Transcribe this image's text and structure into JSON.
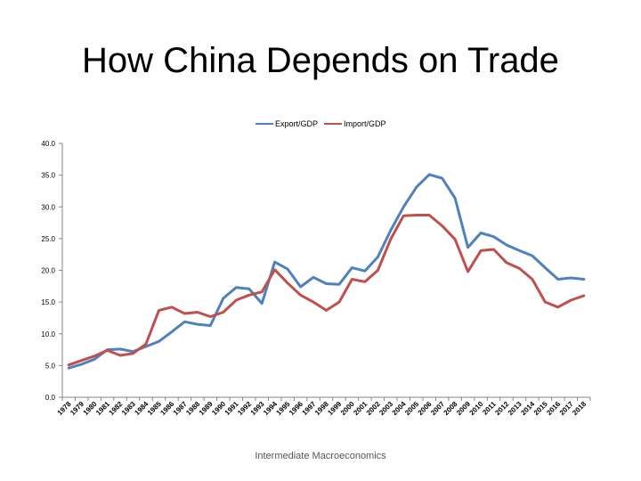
{
  "slide": {
    "title": "How China Depends on Trade",
    "footer": "Intermediate Macroeconomics"
  },
  "chart_data": {
    "type": "line",
    "title": "",
    "xlabel": "",
    "ylabel": "",
    "ylim": [
      0,
      40
    ],
    "yticks": [
      "0.0",
      "5.0",
      "10.0",
      "15.0",
      "20.0",
      "25.0",
      "30.0",
      "35.0",
      "40.0"
    ],
    "grid": false,
    "legend_position": "top",
    "categories": [
      "1978",
      "1979",
      "1980",
      "1981",
      "1982",
      "1983",
      "1984",
      "1985",
      "1986",
      "1987",
      "1988",
      "1989",
      "1990",
      "1991",
      "1992",
      "1993",
      "1994",
      "1995",
      "1996",
      "1997",
      "1998",
      "1999",
      "2000",
      "2001",
      "2002",
      "2003",
      "2004",
      "2005",
      "2006",
      "2007",
      "2008",
      "2009",
      "2010",
      "2011",
      "2012",
      "2013",
      "2014",
      "2015",
      "2016",
      "2017",
      "2018"
    ],
    "series": [
      {
        "name": "Export/GDP",
        "color": "#4f81bd",
        "values": [
          4.6,
          5.2,
          6.0,
          7.5,
          7.6,
          7.2,
          8.0,
          8.8,
          10.3,
          11.9,
          11.5,
          11.3,
          15.6,
          17.3,
          17.1,
          14.8,
          21.3,
          20.2,
          17.4,
          18.9,
          17.9,
          17.8,
          20.4,
          19.9,
          22.1,
          26.3,
          30.0,
          33.1,
          35.1,
          34.5,
          31.4,
          23.6,
          25.9,
          25.3,
          24.0,
          23.1,
          22.3,
          20.4,
          18.6,
          18.8,
          18.6
        ]
      },
      {
        "name": "Import/GDP",
        "color": "#c0504d",
        "values": [
          5.1,
          5.8,
          6.5,
          7.4,
          6.6,
          6.9,
          8.4,
          13.7,
          14.2,
          13.2,
          13.4,
          12.7,
          13.4,
          15.3,
          16.1,
          16.6,
          20.1,
          18.0,
          16.1,
          15.0,
          13.7,
          15.0,
          18.6,
          18.2,
          20.0,
          24.9,
          28.6,
          28.7,
          28.7,
          27.0,
          24.9,
          19.8,
          23.1,
          23.3,
          21.2,
          20.3,
          18.6,
          15.0,
          14.2,
          15.3,
          16.0
        ]
      }
    ]
  }
}
